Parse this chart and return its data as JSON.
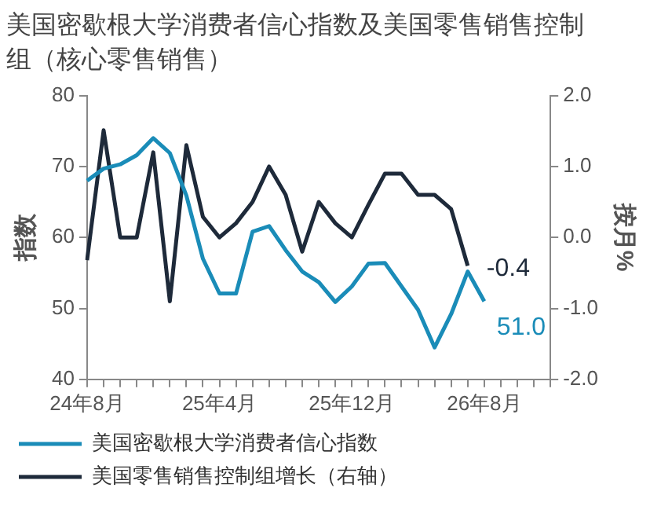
{
  "chart_data": {
    "type": "line",
    "title": "美国密歇根大学消费者信心指数及美国零售销售控制组（核心零售销售）",
    "categories": [
      "24年8月",
      null,
      null,
      null,
      null,
      null,
      null,
      null,
      "25年4月",
      null,
      null,
      null,
      null,
      null,
      null,
      null,
      "25年12月",
      null,
      null,
      null,
      null,
      null,
      null,
      null,
      "26年8月",
      null,
      null,
      null,
      null
    ],
    "series": [
      {
        "name": "美国密歇根大学消费者信心指数",
        "color": "#1a8cb8",
        "values": [
          68.0,
          69.7,
          70.3,
          71.6,
          74.0,
          71.9,
          65.9,
          57.0,
          52.1,
          52.1,
          60.8,
          61.6,
          58.2,
          55.2,
          53.7,
          50.9,
          53.1,
          56.3,
          56.4,
          53.1,
          49.8,
          44.5,
          49.2,
          55.2,
          51.0,
          null,
          null,
          null,
          null
        ],
        "value_labels": [
          null,
          null,
          null,
          null,
          null,
          null,
          null,
          null,
          null,
          null,
          null,
          null,
          null,
          null,
          null,
          null,
          null,
          null,
          null,
          null,
          null,
          null,
          null,
          null,
          "51.0",
          null,
          null,
          null,
          null
        ]
      },
      {
        "name": "美国零售销售控制组增长（右轴）",
        "color": "#1e2a3a",
        "axis": "y2",
        "values": [
          -0.32,
          1.51,
          0.0,
          0.0,
          1.2,
          -0.9,
          1.3,
          0.29,
          0.0,
          0.2,
          0.5,
          1.0,
          0.6,
          -0.2,
          0.5,
          0.2,
          0.0,
          0.46,
          0.9,
          0.9,
          0.6,
          0.6,
          0.4,
          -0.4,
          null,
          null,
          null,
          null,
          null
        ],
        "value_labels": [
          null,
          null,
          null,
          null,
          null,
          null,
          null,
          null,
          null,
          null,
          null,
          null,
          null,
          null,
          null,
          null,
          null,
          null,
          null,
          null,
          null,
          null,
          null,
          "-0.4",
          null,
          null,
          null,
          null,
          null
        ]
      }
    ],
    "ylabel": "指数",
    "y2label": "按月%",
    "ylim": [
      40,
      80
    ],
    "yticks": [
      40,
      50,
      60,
      70,
      80
    ],
    "y2lim": [
      -2.0,
      2.0
    ],
    "y2ticks": [
      {
        "value": -2,
        "label": "-2.0"
      },
      {
        "value": -1,
        "label": "-1.0"
      },
      {
        "value": 0,
        "label": "0.0"
      },
      {
        "value": 1,
        "label": "1.0"
      },
      {
        "value": 2,
        "label": "2.0"
      }
    ],
    "legend": "bottom",
    "grid": false,
    "marker": "none",
    "line_style": "solid"
  }
}
